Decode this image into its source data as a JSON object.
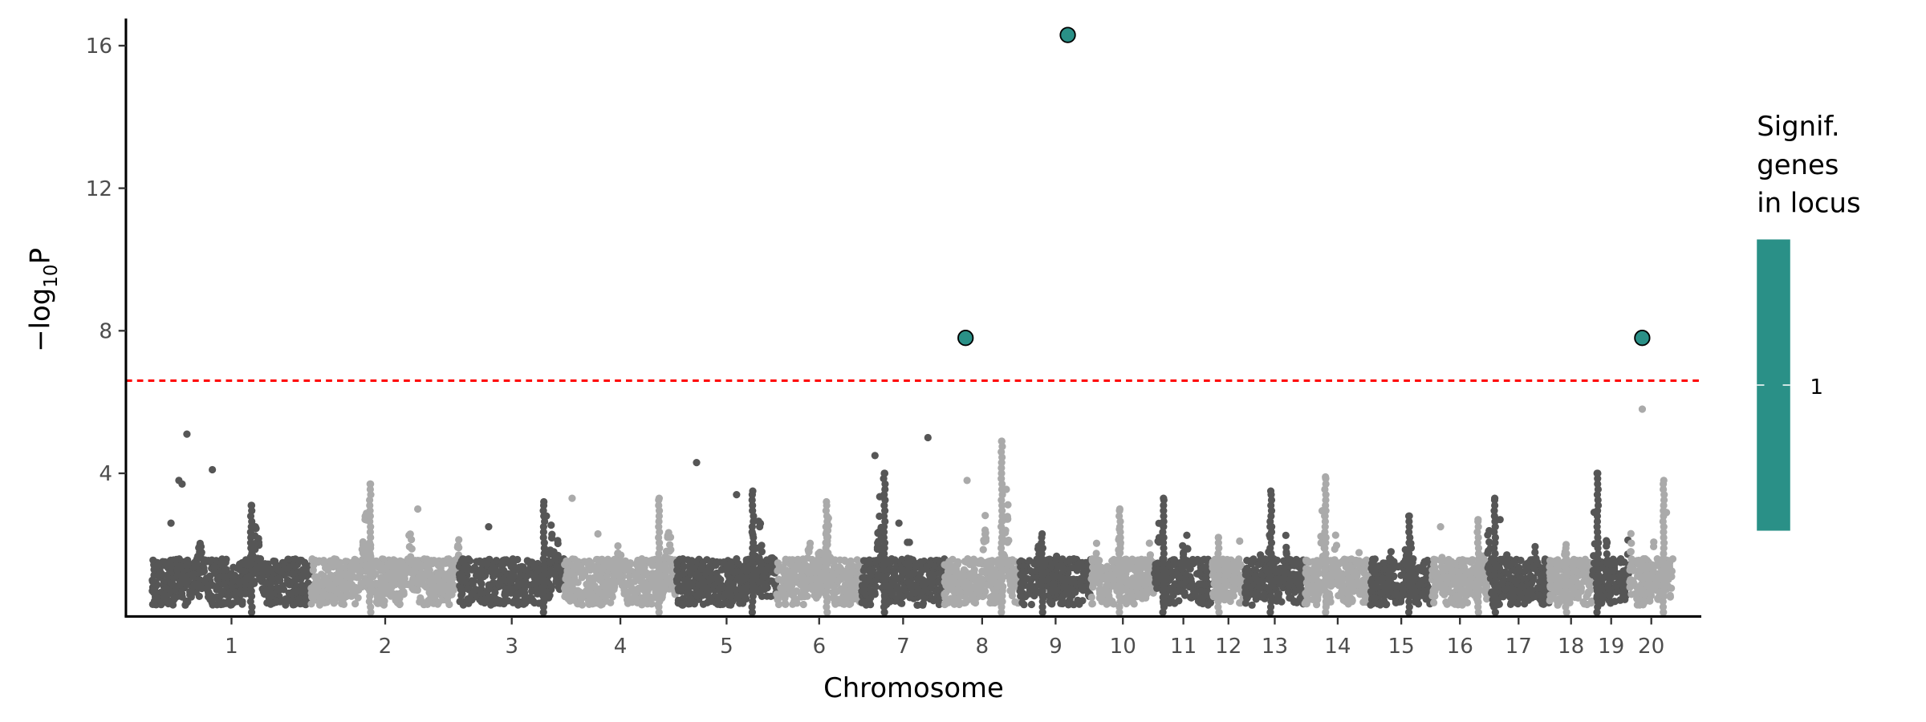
{
  "chart_data": {
    "type": "scatter",
    "subtype": "manhattan",
    "title": "",
    "xlabel": "Chromosome",
    "ylabel_main": "−log",
    "ylabel_sub": "10",
    "ylabel_end": "P",
    "ylim": [
      0,
      16.7
    ],
    "yticks": [
      4,
      8,
      12,
      16
    ],
    "ytick_labels": [
      "4",
      "8",
      "12",
      "16"
    ],
    "grid": false,
    "significance_threshold": 6.6,
    "threshold_color": "#ff0000",
    "colors": {
      "odd": "#565656",
      "even": "#aaaaaa",
      "significant": "#2a9087"
    },
    "chromosomes": [
      {
        "label": "1",
        "length": 129,
        "peak": 3.1,
        "outliers": [
          [
            0.17,
            3.8
          ],
          [
            0.19,
            3.7
          ],
          [
            0.22,
            5.1
          ],
          [
            0.38,
            4.1
          ],
          [
            0.12,
            2.6
          ]
        ]
      },
      {
        "label": "2",
        "length": 120,
        "peak": 3.7,
        "outliers": [
          [
            0.72,
            3.0
          ]
        ]
      },
      {
        "label": "3",
        "length": 85,
        "peak": 3.2,
        "outliers": [
          [
            0.28,
            2.5
          ],
          [
            0.83,
            2.8
          ]
        ]
      },
      {
        "label": "4",
        "length": 91,
        "peak": 3.3,
        "outliers": [
          [
            0.07,
            3.3
          ],
          [
            0.3,
            2.3
          ]
        ]
      },
      {
        "label": "5",
        "length": 81,
        "peak": 3.5,
        "outliers": [
          [
            0.2,
            4.3
          ],
          [
            0.6,
            3.4
          ]
        ]
      },
      {
        "label": "6",
        "length": 69,
        "peak": 3.2,
        "outliers": [
          [
            0.58,
            2.3
          ]
        ]
      },
      {
        "label": "7",
        "length": 67,
        "peak": 4.0,
        "outliers": [
          [
            0.16,
            4.5
          ],
          [
            0.8,
            5.0
          ],
          [
            0.45,
            2.6
          ]
        ]
      },
      {
        "label": "8",
        "length": 61,
        "peak": 4.9,
        "outliers": [
          [
            0.3,
            3.8
          ]
        ]
      },
      {
        "label": "9",
        "length": 58,
        "peak": 2.3,
        "outliers": []
      },
      {
        "label": "10",
        "length": 51,
        "peak": 3.0,
        "outliers": []
      },
      {
        "label": "11",
        "length": 47,
        "peak": 3.3,
        "outliers": []
      },
      {
        "label": "12",
        "length": 26,
        "peak": 2.2,
        "outliers": [
          [
            0.85,
            2.1
          ]
        ]
      },
      {
        "label": "13",
        "length": 49,
        "peak": 3.5,
        "outliers": [
          [
            0.45,
            2.5
          ]
        ]
      },
      {
        "label": "14",
        "length": 53,
        "peak": 3.9,
        "outliers": [
          [
            0.3,
            2.8
          ]
        ]
      },
      {
        "label": "15",
        "length": 50,
        "peak": 2.8,
        "outliers": []
      },
      {
        "label": "16",
        "length": 45,
        "peak": 2.7,
        "outliers": [
          [
            0.15,
            2.5
          ]
        ]
      },
      {
        "label": "17",
        "length": 50,
        "peak": 3.3,
        "outliers": [
          [
            0.2,
            2.7
          ]
        ]
      },
      {
        "label": "18",
        "length": 35,
        "peak": 2.0,
        "outliers": []
      },
      {
        "label": "19",
        "length": 30,
        "peak": 4.0,
        "outliers": []
      },
      {
        "label": "20",
        "length": 35,
        "peak": 3.8,
        "outliers": [
          [
            0.29,
            5.8
          ]
        ]
      }
    ],
    "significant_points": [
      {
        "chromosome": "8",
        "relative_position": 0.28,
        "value": 7.8,
        "genes_in_locus": 1
      },
      {
        "chromosome": "9",
        "relative_position": 0.67,
        "value": 16.3,
        "genes_in_locus": 1
      },
      {
        "chromosome": "20",
        "relative_position": 0.29,
        "value": 7.8,
        "genes_in_locus": 1
      }
    ],
    "legend": {
      "title_lines": [
        "Signif.",
        "genes",
        "in locus"
      ],
      "labels": [
        "1"
      ],
      "placement": "right"
    }
  }
}
